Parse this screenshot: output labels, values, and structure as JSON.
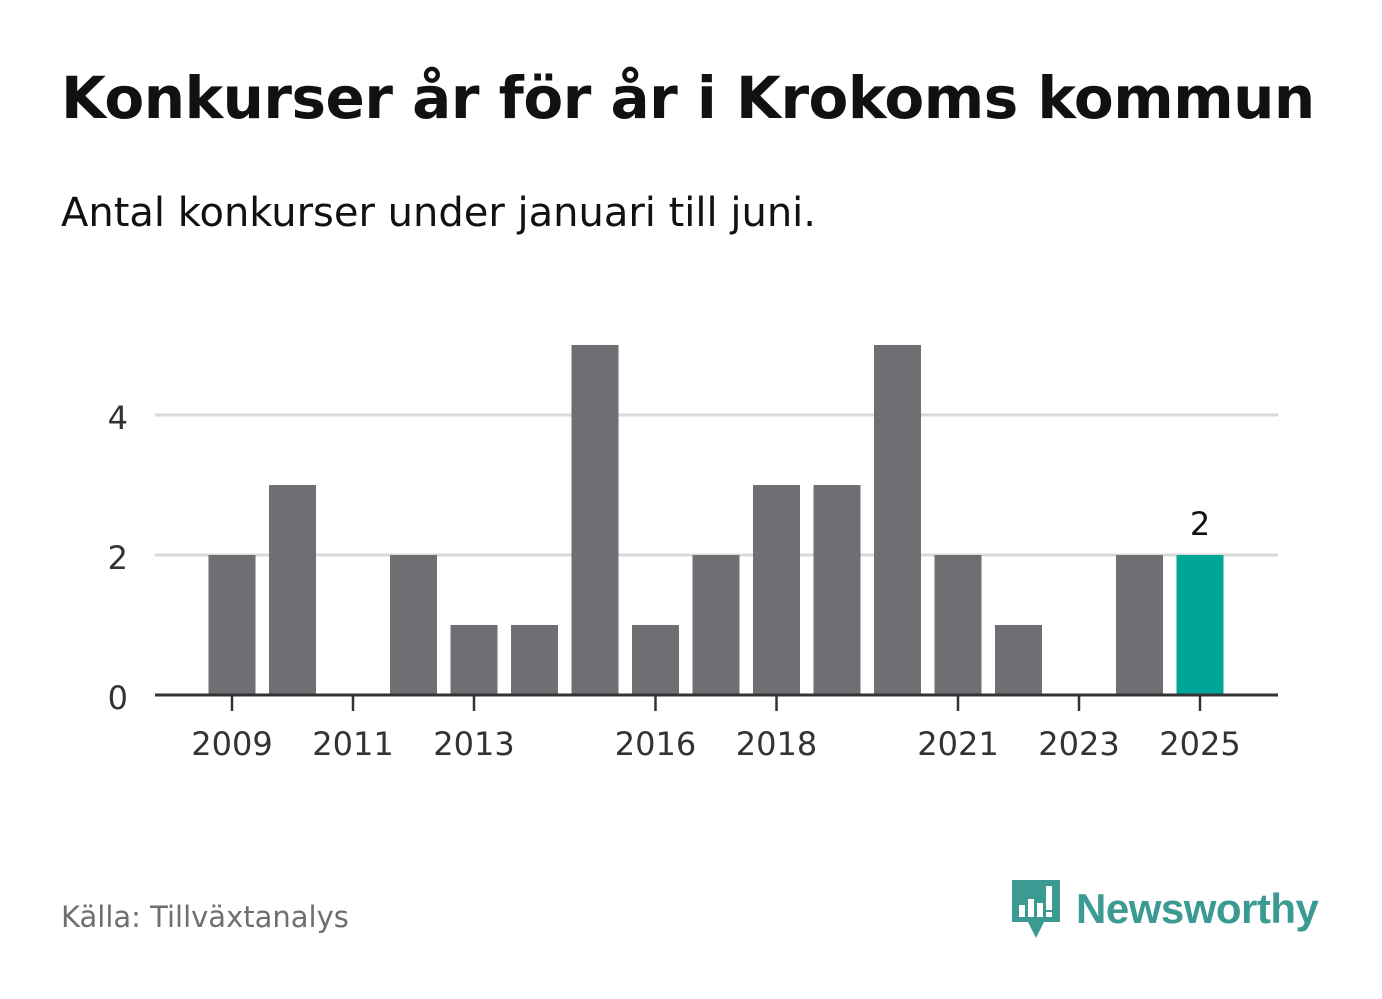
{
  "title": "Konkurser år för år i Krokoms kommun",
  "subtitle": "Antal konkurser under januari till juni.",
  "source": "Källa: Tillväxtanalys",
  "brand": {
    "name": "Newsworthy",
    "icon": "newsworthy-logo-icon"
  },
  "colors": {
    "bar": "#6f6e73",
    "highlight": "#00a599",
    "gridline": "#d9d9d9",
    "axis": "#333333",
    "brand": "#3b9a92"
  },
  "chart_data": {
    "type": "bar",
    "categories": [
      "2009",
      "2010",
      "2011",
      "2012",
      "2013",
      "2014",
      "2015",
      "2016",
      "2017",
      "2018",
      "2019",
      "2020",
      "2021",
      "2022",
      "2023",
      "2024",
      "2025"
    ],
    "values": [
      2,
      3,
      0,
      2,
      1,
      1,
      5,
      1,
      2,
      3,
      3,
      5,
      2,
      1,
      0,
      2,
      2
    ],
    "x_tick_labels": [
      "2009",
      "2011",
      "2013",
      "2016",
      "2018",
      "2021",
      "2023",
      "2025"
    ],
    "y_ticks": [
      0,
      2,
      4
    ],
    "ylim": [
      0,
      5
    ],
    "grid": true,
    "highlight_category": "2025",
    "data_labels": [
      {
        "category": "2025",
        "text": "2"
      }
    ],
    "xlabel": "",
    "ylabel": ""
  }
}
